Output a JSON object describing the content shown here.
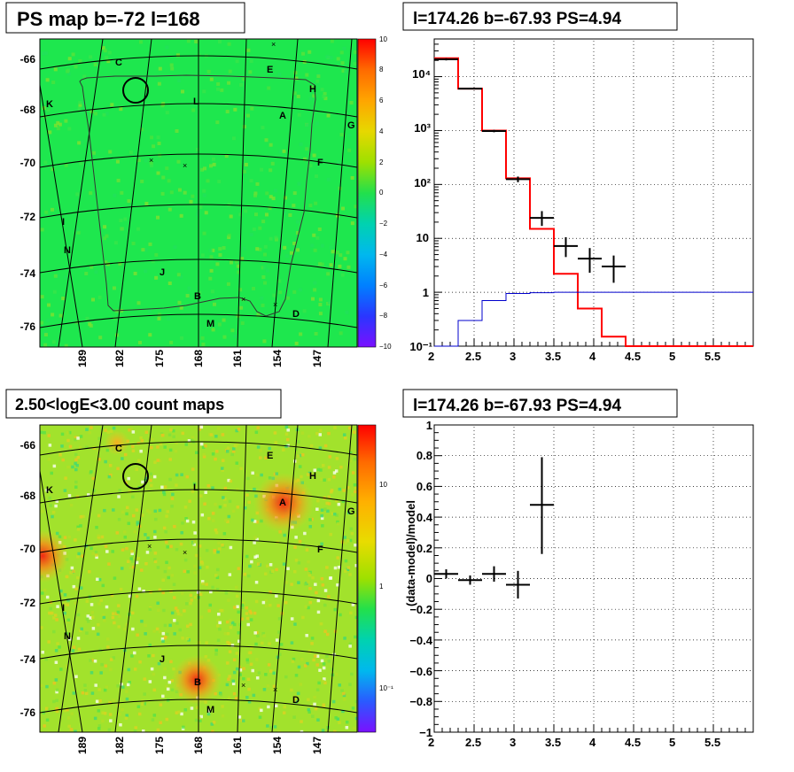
{
  "panels": {
    "ps_map": {
      "title": "PS map b=-72 l=168",
      "lat_ticks": [
        "-66",
        "-68",
        "-70",
        "-72",
        "-74",
        "-76"
      ],
      "lon_ticks": [
        "189",
        "182",
        "175",
        "168",
        "161",
        "154",
        "147"
      ],
      "colorbar_ticks": [
        "10",
        "8",
        "6",
        "4",
        "2",
        "0",
        "−2",
        "−4",
        "−6",
        "−8",
        "−10"
      ],
      "region_labels": [
        "C",
        "E",
        "H",
        "K",
        "L",
        "A",
        "G",
        "F",
        "I",
        "N",
        "J",
        "B",
        "D",
        "M"
      ],
      "colors": {
        "background": "#1ee74e",
        "noise": "#5fe23a",
        "frame": "#000000"
      }
    },
    "count_map": {
      "title": "2.50<logE<3.00 count maps",
      "lat_ticks": [
        "-66",
        "-68",
        "-70",
        "-72",
        "-74",
        "-76"
      ],
      "lon_ticks": [
        "189",
        "182",
        "175",
        "168",
        "161",
        "154",
        "147"
      ],
      "colorbar_ticks": [
        "10",
        "1",
        "10⁻¹"
      ],
      "region_labels": [
        "C",
        "E",
        "H",
        "K",
        "L",
        "A",
        "G",
        "F",
        "I",
        "N",
        "J",
        "B",
        "D",
        "M"
      ],
      "colors": {
        "background": "#a2e22c",
        "hot": "#f03a1a"
      }
    },
    "spectrum": {
      "title": "l=174.26 b=-67.93 PS=4.94"
    },
    "residual": {
      "title": "l=174.26 b=-67.93 PS=4.94"
    }
  },
  "chart_data": [
    {
      "type": "line",
      "title": "l=174.26 b=-67.93 PS=4.94",
      "xlabel": "",
      "ylabel": "",
      "xlim": [
        2,
        6
      ],
      "ylim": [
        0.1,
        50000
      ],
      "y_scale": "log",
      "x_ticks": [
        "2",
        "2.5",
        "3",
        "3.5",
        "4",
        "4.5",
        "5",
        "5.5"
      ],
      "y_ticks": [
        "10⁻¹",
        "1",
        "10",
        "10²",
        "10³",
        "10⁴"
      ],
      "grid": true,
      "series": [
        {
          "style": "step",
          "color": "#ff0000",
          "edges": [
            2.0,
            2.3,
            2.6,
            2.9,
            3.2,
            3.5,
            3.8,
            4.1,
            4.4,
            6.0
          ],
          "values": [
            22000,
            6000,
            1000,
            130,
            15,
            2.2,
            0.5,
            0.15,
            0.1
          ]
        },
        {
          "style": "step",
          "color": "#0000cc",
          "edges": [
            2.0,
            2.3,
            2.6,
            2.9,
            3.2,
            3.5,
            6.0
          ],
          "values": [
            0.08,
            0.3,
            0.7,
            0.95,
            0.98,
            1.0
          ]
        },
        {
          "style": "errorbars",
          "color": "#000000",
          "x": [
            2.15,
            2.45,
            2.75,
            3.05,
            3.35,
            3.65,
            3.95,
            4.25
          ],
          "xerr": [
            0.15,
            0.15,
            0.15,
            0.15,
            0.15,
            0.15,
            0.15,
            0.15
          ],
          "y": [
            21000,
            6000,
            980,
            125,
            24,
            7.2,
            4.2,
            3.0
          ],
          "ylo": [
            20000,
            5800,
            930,
            110,
            17,
            4.5,
            2.3,
            1.5
          ],
          "yhi": [
            22000,
            6200,
            1030,
            140,
            32,
            10.5,
            6.6,
            4.8
          ]
        }
      ]
    },
    {
      "type": "scatter",
      "title": "l=174.26 b=-67.93 PS=4.94",
      "xlabel": "",
      "ylabel": "(data-model)/model",
      "xlim": [
        2,
        6
      ],
      "ylim": [
        -1,
        1
      ],
      "x_ticks": [
        "2",
        "2.5",
        "3",
        "3.5",
        "4",
        "4.5",
        "5",
        "5.5"
      ],
      "y_ticks": [
        "−1",
        "−0.8",
        "−0.6",
        "−0.4",
        "−0.2",
        "0",
        "0.2",
        "0.4",
        "0.6",
        "0.8",
        "1"
      ],
      "grid": true,
      "series": [
        {
          "style": "errorbars",
          "color": "#000000",
          "x": [
            2.15,
            2.45,
            2.75,
            3.05,
            3.35
          ],
          "xerr": [
            0.15,
            0.15,
            0.15,
            0.15,
            0.15
          ],
          "y": [
            0.03,
            -0.01,
            0.03,
            -0.04,
            0.48
          ],
          "ylo": [
            0.0,
            -0.04,
            -0.02,
            -0.13,
            0.16
          ],
          "yhi": [
            0.06,
            0.02,
            0.08,
            0.05,
            0.79
          ]
        }
      ]
    }
  ]
}
